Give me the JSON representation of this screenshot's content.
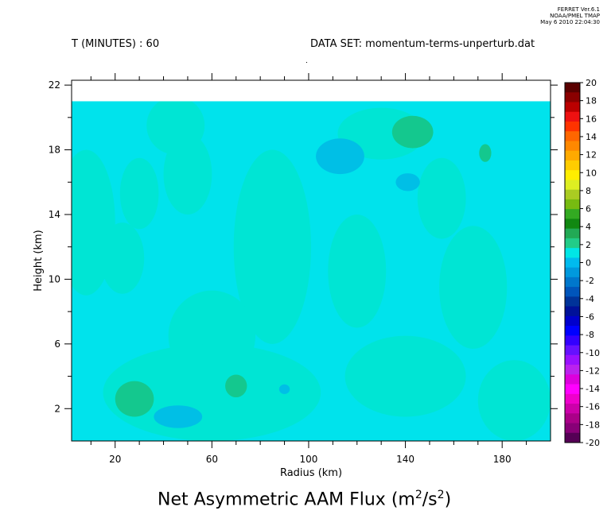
{
  "header": {
    "left_label": "T (MINUTES) : 60",
    "right_label": "DATA SET: momentum-terms-unperturb.dat",
    "stamp": [
      "FERRET Ver.6.1",
      "NOAA/PMEL TMAP",
      "May  6 2010 22:04:30"
    ]
  },
  "title": {
    "main": "Net Asymmetric AAM Flux (m",
    "sup1": "2",
    "mid": "/s",
    "sup2": "2",
    "end": ")"
  },
  "chart_data": {
    "type": "heatmap",
    "xlabel": "Radius (km)",
    "ylabel": "Height (km)",
    "xlim": [
      2,
      200
    ],
    "ylim": [
      0,
      22.3
    ],
    "data_ylim": [
      0,
      21
    ],
    "x_ticks": [
      20,
      60,
      100,
      140,
      180
    ],
    "y_ticks": [
      2,
      6,
      10,
      14,
      18,
      22
    ],
    "background_level": 0,
    "regions": [
      {
        "level": 0,
        "shape": "ellipse",
        "cx": 8,
        "cy": 13.5,
        "rx": 12,
        "ry": 4.5
      },
      {
        "level": 0,
        "shape": "ellipse",
        "cx": 30,
        "cy": 15.3,
        "rx": 8,
        "ry": 2.2
      },
      {
        "level": 0,
        "shape": "ellipse",
        "cx": 23,
        "cy": 11.3,
        "rx": 9,
        "ry": 2.2
      },
      {
        "level": 0,
        "shape": "ellipse",
        "cx": 45,
        "cy": 19.5,
        "rx": 12,
        "ry": 1.8
      },
      {
        "level": 0,
        "shape": "ellipse",
        "cx": 50,
        "cy": 16.5,
        "rx": 10,
        "ry": 2.5
      },
      {
        "level": 0,
        "shape": "ellipse",
        "cx": 85,
        "cy": 12,
        "rx": 16,
        "ry": 6
      },
      {
        "level": 0,
        "shape": "ellipse",
        "cx": 60,
        "cy": 6.5,
        "rx": 18,
        "ry": 2.8
      },
      {
        "level": 0,
        "shape": "ellipse",
        "cx": 120,
        "cy": 10.5,
        "rx": 12,
        "ry": 3.5
      },
      {
        "level": 0,
        "shape": "ellipse",
        "cx": 168,
        "cy": 9.5,
        "rx": 14,
        "ry": 3.8
      },
      {
        "level": 0,
        "shape": "ellipse",
        "cx": 130,
        "cy": 19,
        "rx": 18,
        "ry": 1.6
      },
      {
        "level": 0,
        "shape": "ellipse",
        "cx": 60,
        "cy": 3,
        "rx": 45,
        "ry": 3
      },
      {
        "level": 0,
        "shape": "ellipse",
        "cx": 140,
        "cy": 4,
        "rx": 25,
        "ry": 2.5
      },
      {
        "level": 0,
        "shape": "ellipse",
        "cx": 185,
        "cy": 2.5,
        "rx": 15,
        "ry": 2.5
      },
      {
        "level": 0,
        "shape": "ellipse",
        "cx": 155,
        "cy": 15,
        "rx": 10,
        "ry": 2.5
      },
      {
        "level": 2,
        "shape": "ellipse",
        "cx": 28,
        "cy": 2.6,
        "rx": 8,
        "ry": 1.1
      },
      {
        "level": 2,
        "shape": "ellipse",
        "cx": 70,
        "cy": 3.4,
        "rx": 4.5,
        "ry": 0.7
      },
      {
        "level": 2,
        "shape": "ellipse",
        "cx": 143,
        "cy": 19.1,
        "rx": 8.5,
        "ry": 1.0
      },
      {
        "level": 2,
        "shape": "ellipse",
        "cx": 173,
        "cy": 17.8,
        "rx": 2.5,
        "ry": 0.55
      },
      {
        "level": -2,
        "shape": "ellipse",
        "cx": 113,
        "cy": 17.6,
        "rx": 10,
        "ry": 1.1
      },
      {
        "level": -2,
        "shape": "ellipse",
        "cx": 46,
        "cy": 1.5,
        "rx": 10,
        "ry": 0.7
      },
      {
        "level": -2,
        "shape": "ellipse",
        "cx": 141,
        "cy": 16,
        "rx": 5,
        "ry": 0.55
      },
      {
        "level": -2,
        "shape": "ellipse",
        "cx": 90,
        "cy": 3.2,
        "rx": 2.2,
        "ry": 0.3
      }
    ],
    "colorbar": {
      "min": -20,
      "max": 20,
      "step": 2,
      "labels": [
        20,
        18,
        16,
        14,
        12,
        10,
        8,
        6,
        4,
        2,
        0,
        -2,
        -4,
        -6,
        -8,
        -10,
        -12,
        -14,
        -16,
        -18,
        -20
      ],
      "colors_top_to_bottom": [
        "#5a0000",
        "#8a0000",
        "#bb0000",
        "#ee1111",
        "#ff3300",
        "#ff6600",
        "#ff8800",
        "#ffaa00",
        "#ffcc00",
        "#ffee00",
        "#ddee22",
        "#aacc22",
        "#77bb11",
        "#33aa22",
        "#118811",
        "#22aa55",
        "#22cc88",
        "#00e6e6",
        "#00bbee",
        "#0099dd",
        "#0077cc",
        "#0055bb",
        "#003399",
        "#001199",
        "#0000cc",
        "#0000ff",
        "#3300ff",
        "#6611ff",
        "#9911ff",
        "#bb22ee",
        "#dd00dd",
        "#ff00ff",
        "#ee00cc",
        "#cc00aa",
        "#aa0088",
        "#880077",
        "#550055"
      ]
    },
    "level_colors": {
      "-2": "#00bfe6",
      "0": "#00e5d4",
      "2": "#14c88e"
    },
    "background_color": "#00e3ec"
  }
}
